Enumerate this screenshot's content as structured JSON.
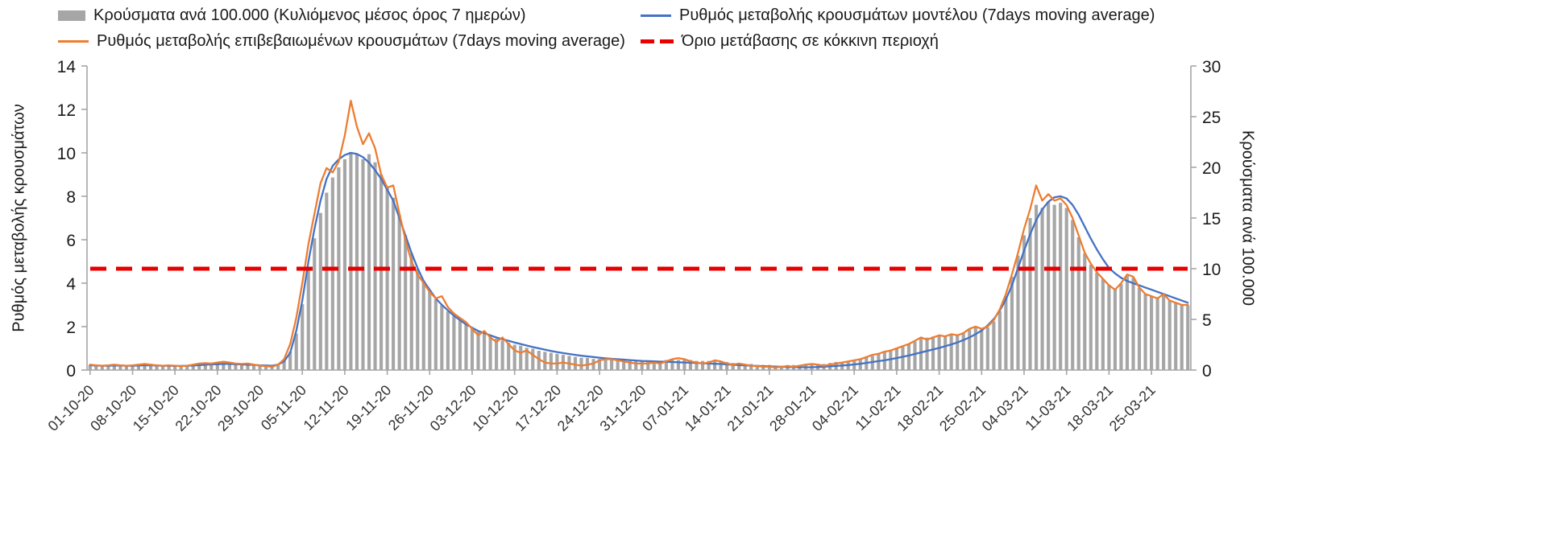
{
  "legend": {
    "items": [
      {
        "id": "cases-bars",
        "label": "Κρούσματα ανά 100.000 (Κυλιόμενος μέσος όρος 7 ημερών)",
        "type": "bar",
        "color": "#a6a6a6"
      },
      {
        "id": "model-rate-line",
        "label": "Ρυθμός μεταβολής κρουσμάτων μοντέλου (7days moving average)",
        "type": "line",
        "color": "#4472c4"
      },
      {
        "id": "confirmed-rate-line",
        "label": "Ρυθμός μεταβολής επιβεβαιωμένων κρουσμάτων (7days moving average)",
        "type": "line",
        "color": "#ed7d31"
      },
      {
        "id": "red-threshold",
        "label": "Όριο μετάβασης σε κόκκινη περιοχή",
        "type": "dashed",
        "color": "#e60000"
      }
    ]
  },
  "chart_data": {
    "type": "bar",
    "subtype": "combo-bar-line-dual-axis",
    "n_points": 182,
    "grid": "off",
    "legend_position": "top",
    "left_axis": {
      "label": "Ρυθμός μεταβολής κρουσμάτων",
      "min": 0,
      "max": 14,
      "ticks": [
        0,
        2,
        4,
        6,
        8,
        10,
        12,
        14
      ]
    },
    "right_axis": {
      "label": "Κρούσματα ανά 100.000",
      "min": 0,
      "max": 30,
      "ticks": [
        0,
        5,
        10,
        15,
        20,
        25,
        30
      ]
    },
    "threshold": {
      "label": "Όριο μετάβασης σε κόκκινη περιοχή",
      "axis": "right",
      "value_right": 10,
      "color": "#e60000",
      "style": "dashed"
    },
    "x_tick_labels": [
      "01-10-20",
      "08-10-20",
      "15-10-20",
      "22-10-20",
      "29-10-20",
      "05-11-20",
      "12-11-20",
      "19-11-20",
      "26-11-20",
      "03-12-20",
      "10-12-20",
      "17-12-20",
      "24-12-20",
      "31-12-20",
      "07-01-21",
      "14-01-21",
      "21-01-21",
      "28-01-21",
      "04-02-21",
      "11-02-21",
      "18-02-21",
      "25-02-21",
      "04-03-21",
      "11-03-21",
      "18-03-21",
      "25-03-21"
    ],
    "x_tick_indices": [
      0,
      7,
      14,
      21,
      28,
      35,
      42,
      49,
      56,
      63,
      70,
      77,
      84,
      91,
      98,
      105,
      112,
      119,
      126,
      133,
      140,
      147,
      154,
      161,
      168,
      175
    ],
    "series": [
      {
        "id": "cases-bars",
        "name": "Κρούσματα ανά 100.000 (Κυλιόμενος μέσος όρος 7 ημερών)",
        "type": "bar",
        "axis": "right",
        "color": "#a6a6a6",
        "values": [
          0.5,
          0.5,
          0.45,
          0.45,
          0.5,
          0.5,
          0.45,
          0.45,
          0.5,
          0.55,
          0.55,
          0.5,
          0.45,
          0.45,
          0.4,
          0.4,
          0.45,
          0.5,
          0.55,
          0.6,
          0.65,
          0.7,
          0.75,
          0.7,
          0.65,
          0.6,
          0.6,
          0.55,
          0.5,
          0.45,
          0.4,
          0.5,
          0.9,
          1.8,
          3.6,
          6.5,
          10.0,
          13.0,
          15.5,
          17.5,
          19.0,
          20.0,
          20.8,
          21.5,
          21.3,
          20.8,
          21.3,
          20.5,
          19.3,
          18.0,
          17.0,
          15.3,
          13.3,
          11.5,
          10.0,
          8.8,
          7.8,
          7.0,
          6.4,
          5.8,
          5.3,
          4.9,
          4.5,
          4.1,
          3.8,
          3.6,
          3.3,
          3.1,
          2.9,
          2.7,
          2.5,
          2.4,
          2.2,
          2.1,
          1.9,
          1.8,
          1.7,
          1.6,
          1.5,
          1.4,
          1.3,
          1.2,
          1.2,
          1.1,
          1.1,
          1.1,
          1.1,
          1.0,
          1.0,
          0.9,
          0.9,
          0.9,
          0.9,
          0.9,
          0.9,
          1.0,
          1.0,
          1.0,
          1.0,
          1.0,
          0.9,
          0.9,
          0.9,
          0.9,
          0.8,
          0.8,
          0.7,
          0.7,
          0.6,
          0.6,
          0.5,
          0.5,
          0.5,
          0.4,
          0.4,
          0.5,
          0.5,
          0.5,
          0.6,
          0.6,
          0.6,
          0.6,
          0.7,
          0.8,
          0.8,
          0.9,
          1.0,
          1.1,
          1.3,
          1.4,
          1.6,
          1.8,
          2.0,
          2.1,
          2.3,
          2.6,
          2.8,
          3.1,
          3.2,
          3.3,
          3.4,
          3.3,
          3.5,
          3.4,
          3.6,
          4.0,
          4.2,
          4.0,
          4.2,
          4.8,
          5.8,
          7.3,
          9.2,
          11.3,
          13.3,
          15.0,
          16.3,
          16.0,
          16.6,
          16.3,
          16.5,
          16.0,
          14.8,
          13.1,
          11.5,
          10.4,
          9.6,
          9.0,
          8.4,
          8.0,
          8.5,
          9.3,
          9.1,
          8.1,
          7.5,
          7.3,
          7.1,
          7.4,
          6.9,
          6.7,
          6.5,
          6.4
        ]
      },
      {
        "id": "model-rate-line",
        "name": "Ρυθμός μεταβολής κρουσμάτων μοντέλου (7days moving average)",
        "type": "line",
        "axis": "left",
        "color": "#4472c4",
        "values": [
          0.22,
          0.21,
          0.2,
          0.2,
          0.21,
          0.21,
          0.2,
          0.2,
          0.21,
          0.22,
          0.22,
          0.21,
          0.2,
          0.2,
          0.19,
          0.19,
          0.2,
          0.21,
          0.23,
          0.25,
          0.26,
          0.27,
          0.28,
          0.28,
          0.27,
          0.26,
          0.25,
          0.24,
          0.22,
          0.21,
          0.2,
          0.25,
          0.4,
          0.8,
          1.8,
          3.2,
          5.0,
          6.5,
          7.8,
          8.8,
          9.4,
          9.7,
          9.9,
          10.0,
          9.95,
          9.8,
          9.55,
          9.2,
          8.8,
          8.3,
          7.8,
          7.0,
          6.2,
          5.4,
          4.7,
          4.1,
          3.7,
          3.3,
          3.0,
          2.75,
          2.5,
          2.3,
          2.1,
          1.95,
          1.8,
          1.7,
          1.6,
          1.5,
          1.42,
          1.35,
          1.27,
          1.2,
          1.13,
          1.06,
          1.0,
          0.94,
          0.88,
          0.83,
          0.78,
          0.74,
          0.7,
          0.66,
          0.63,
          0.6,
          0.57,
          0.54,
          0.52,
          0.5,
          0.48,
          0.46,
          0.44,
          0.42,
          0.41,
          0.4,
          0.39,
          0.38,
          0.37,
          0.36,
          0.35,
          0.34,
          0.33,
          0.31,
          0.3,
          0.29,
          0.28,
          0.26,
          0.25,
          0.23,
          0.22,
          0.2,
          0.19,
          0.18,
          0.17,
          0.16,
          0.15,
          0.14,
          0.14,
          0.13,
          0.13,
          0.13,
          0.14,
          0.15,
          0.17,
          0.19,
          0.21,
          0.23,
          0.26,
          0.29,
          0.33,
          0.37,
          0.41,
          0.45,
          0.5,
          0.55,
          0.61,
          0.67,
          0.74,
          0.81,
          0.88,
          0.95,
          1.02,
          1.1,
          1.18,
          1.27,
          1.38,
          1.5,
          1.65,
          1.82,
          2.05,
          2.35,
          2.75,
          3.25,
          3.9,
          4.7,
          5.5,
          6.25,
          6.9,
          7.4,
          7.75,
          7.95,
          8.0,
          7.9,
          7.6,
          7.15,
          6.6,
          6.05,
          5.55,
          5.1,
          4.7,
          4.45,
          4.25,
          4.1,
          4.0,
          3.9,
          3.8,
          3.7,
          3.6,
          3.5,
          3.4,
          3.3,
          3.2,
          3.1
        ]
      },
      {
        "id": "confirmed-rate-line",
        "name": "Ρυθμός μεταβολής επιβεβαιωμένων κρουσμάτων (7days moving average)",
        "type": "line",
        "axis": "left",
        "color": "#ed7d31",
        "values": [
          0.25,
          0.22,
          0.2,
          0.22,
          0.25,
          0.22,
          0.2,
          0.22,
          0.25,
          0.28,
          0.25,
          0.22,
          0.2,
          0.22,
          0.2,
          0.18,
          0.2,
          0.25,
          0.3,
          0.32,
          0.3,
          0.35,
          0.38,
          0.35,
          0.3,
          0.28,
          0.3,
          0.25,
          0.2,
          0.18,
          0.15,
          0.25,
          0.5,
          1.2,
          2.4,
          4.0,
          5.8,
          7.2,
          8.6,
          9.3,
          9.1,
          9.6,
          10.8,
          12.4,
          11.2,
          10.4,
          10.9,
          10.2,
          9.0,
          8.4,
          8.5,
          7.2,
          6.0,
          5.0,
          4.4,
          4.0,
          3.6,
          3.3,
          3.4,
          2.9,
          2.6,
          2.4,
          2.2,
          1.9,
          1.6,
          1.8,
          1.5,
          1.3,
          1.5,
          1.2,
          0.9,
          0.8,
          0.9,
          0.7,
          0.5,
          0.35,
          0.3,
          0.3,
          0.35,
          0.3,
          0.25,
          0.2,
          0.25,
          0.3,
          0.45,
          0.5,
          0.5,
          0.45,
          0.4,
          0.35,
          0.3,
          0.3,
          0.3,
          0.35,
          0.3,
          0.4,
          0.5,
          0.55,
          0.5,
          0.4,
          0.35,
          0.3,
          0.35,
          0.45,
          0.4,
          0.3,
          0.25,
          0.3,
          0.25,
          0.2,
          0.18,
          0.15,
          0.15,
          0.12,
          0.15,
          0.18,
          0.15,
          0.2,
          0.25,
          0.28,
          0.25,
          0.2,
          0.25,
          0.3,
          0.35,
          0.4,
          0.45,
          0.5,
          0.6,
          0.7,
          0.75,
          0.85,
          0.9,
          1.0,
          1.1,
          1.2,
          1.35,
          1.5,
          1.4,
          1.5,
          1.6,
          1.55,
          1.65,
          1.6,
          1.7,
          1.9,
          2.0,
          1.9,
          2.0,
          2.3,
          2.8,
          3.5,
          4.4,
          5.4,
          6.5,
          7.4,
          8.5,
          7.8,
          8.1,
          7.8,
          7.9,
          7.6,
          7.0,
          6.2,
          5.4,
          4.9,
          4.5,
          4.2,
          3.9,
          3.7,
          4.0,
          4.4,
          4.3,
          3.8,
          3.5,
          3.4,
          3.3,
          3.5,
          3.2,
          3.1,
          3.0,
          3.0
        ]
      }
    ]
  }
}
